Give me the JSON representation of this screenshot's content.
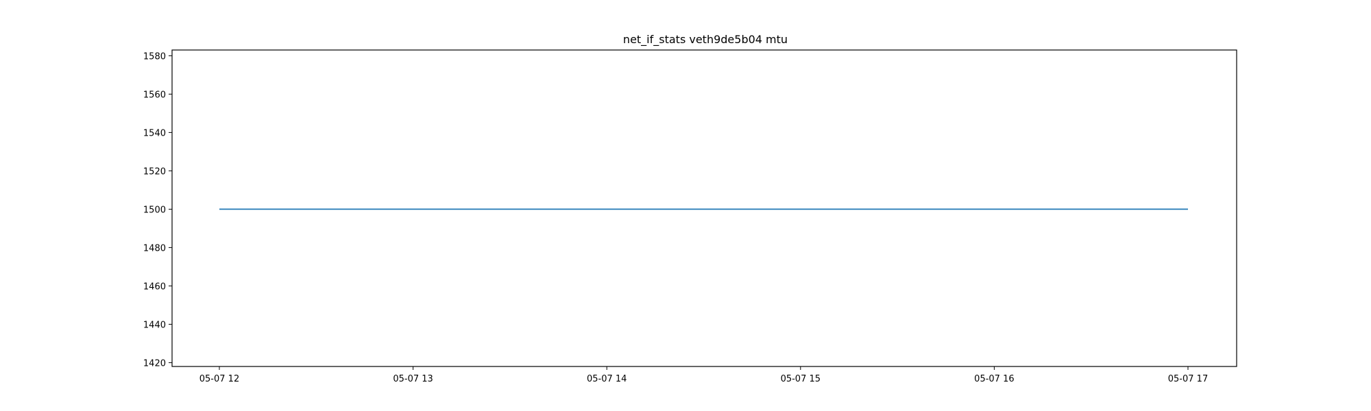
{
  "chart_data": {
    "type": "line",
    "title": "net_if_stats veth9de5b04 mtu",
    "xlabel": "",
    "ylabel": "",
    "x": [
      "05-07 12",
      "05-07 13",
      "05-07 14",
      "05-07 15",
      "05-07 16",
      "05-07 17"
    ],
    "x_ticks": [
      "05-07 12",
      "05-07 13",
      "05-07 14",
      "05-07 15",
      "05-07 16",
      "05-07 17"
    ],
    "y_ticks": [
      1420,
      1440,
      1460,
      1480,
      1500,
      1520,
      1540,
      1560,
      1580
    ],
    "ylim": [
      1418,
      1583
    ],
    "grid": false,
    "series": [
      {
        "color": "#1f77b4",
        "values": [
          1500,
          1500,
          1500,
          1500,
          1500,
          1500
        ]
      }
    ]
  }
}
